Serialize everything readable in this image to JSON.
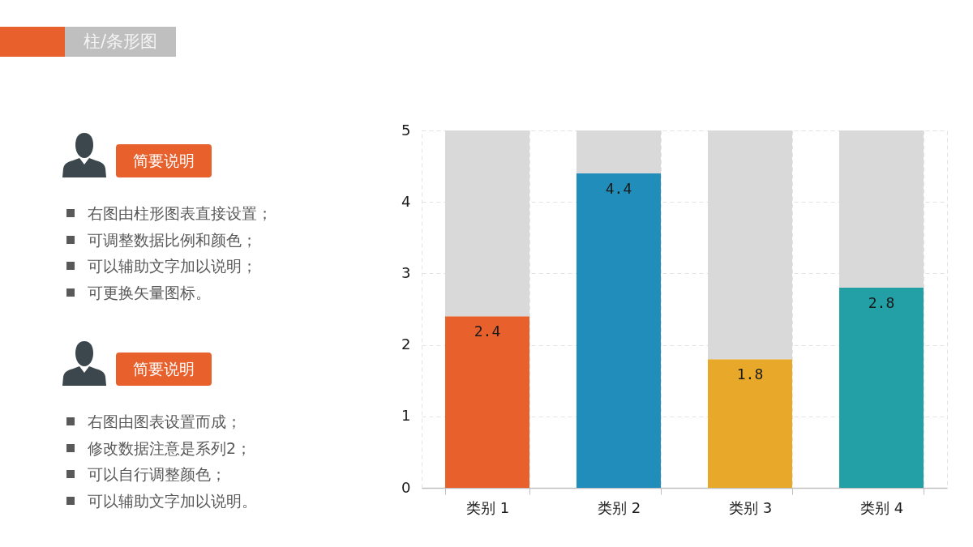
{
  "chart_data": {
    "type": "bar",
    "title": "柱/条形图",
    "categories": [
      "类别 1",
      "类别 2",
      "类别 3",
      "类别 4"
    ],
    "stacked": true,
    "series": [
      {
        "colors": [
          "#e8602c",
          "#218dba",
          "#e8a82a",
          "#22a0a6"
        ],
        "values": [
          2.4,
          4.4,
          1.8,
          2.8
        ],
        "value_labels": [
          "2.4",
          "4.4",
          "1.8",
          "2.8"
        ]
      },
      {
        "color": "#d9d9d9",
        "values": [
          2.6,
          0.6,
          3.2,
          2.2
        ]
      }
    ],
    "ylim": [
      0,
      5
    ],
    "yticks": [
      0,
      1,
      2,
      3,
      4,
      5
    ],
    "grid": true,
    "annotations": [
      "简要说明",
      "右图由柱形图表直接设置；",
      "可调整数据比例和颜色；",
      "可以辅助文字加以说明；",
      "可更换矢量图标。",
      "简要说明",
      "右图由图表设置而成；",
      "修改数据注意是系列2；",
      "可以自行调整颜色；",
      "可以辅助文字加以说明。"
    ]
  }
}
